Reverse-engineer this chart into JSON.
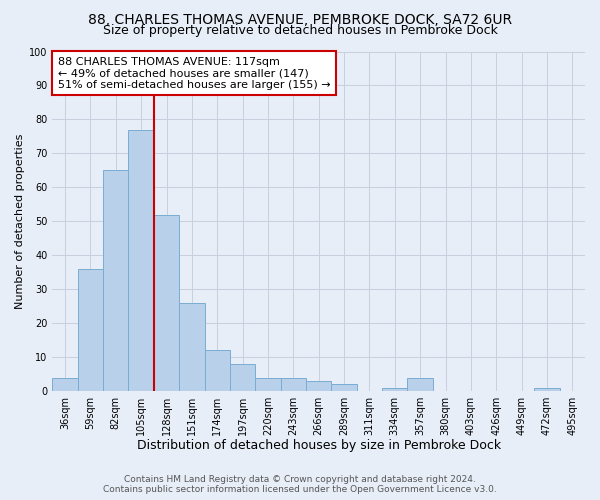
{
  "title": "88, CHARLES THOMAS AVENUE, PEMBROKE DOCK, SA72 6UR",
  "subtitle": "Size of property relative to detached houses in Pembroke Dock",
  "xlabel": "Distribution of detached houses by size in Pembroke Dock",
  "ylabel": "Number of detached properties",
  "footer_line1": "Contains HM Land Registry data © Crown copyright and database right 2024.",
  "footer_line2": "Contains public sector information licensed under the Open Government Licence v3.0.",
  "bar_labels": [
    "36sqm",
    "59sqm",
    "82sqm",
    "105sqm",
    "128sqm",
    "151sqm",
    "174sqm",
    "197sqm",
    "220sqm",
    "243sqm",
    "266sqm",
    "289sqm",
    "311sqm",
    "334sqm",
    "357sqm",
    "380sqm",
    "403sqm",
    "426sqm",
    "449sqm",
    "472sqm",
    "495sqm"
  ],
  "bar_values": [
    4,
    36,
    65,
    77,
    52,
    26,
    12,
    8,
    4,
    4,
    3,
    2,
    0,
    1,
    4,
    0,
    0,
    0,
    0,
    1,
    0
  ],
  "bar_color": "#b8d0ea",
  "bar_edge_color": "#7aadd4",
  "ylim": [
    0,
    100
  ],
  "yticks": [
    0,
    10,
    20,
    30,
    40,
    50,
    60,
    70,
    80,
    90,
    100
  ],
  "vline_color": "#cc0000",
  "vline_x_index": 3.5,
  "annotation_line1": "88 CHARLES THOMAS AVENUE: 117sqm",
  "annotation_line2": "← 49% of detached houses are smaller (147)",
  "annotation_line3": "51% of semi-detached houses are larger (155) →",
  "annotation_box_facecolor": "#ffffff",
  "annotation_box_edgecolor": "#cc0000",
  "background_color": "#e8eef8",
  "grid_color": "#c8d0e0",
  "title_fontsize": 10,
  "subtitle_fontsize": 9,
  "xlabel_fontsize": 9,
  "ylabel_fontsize": 8,
  "tick_fontsize": 7,
  "annotation_fontsize": 8,
  "footer_fontsize": 6.5
}
